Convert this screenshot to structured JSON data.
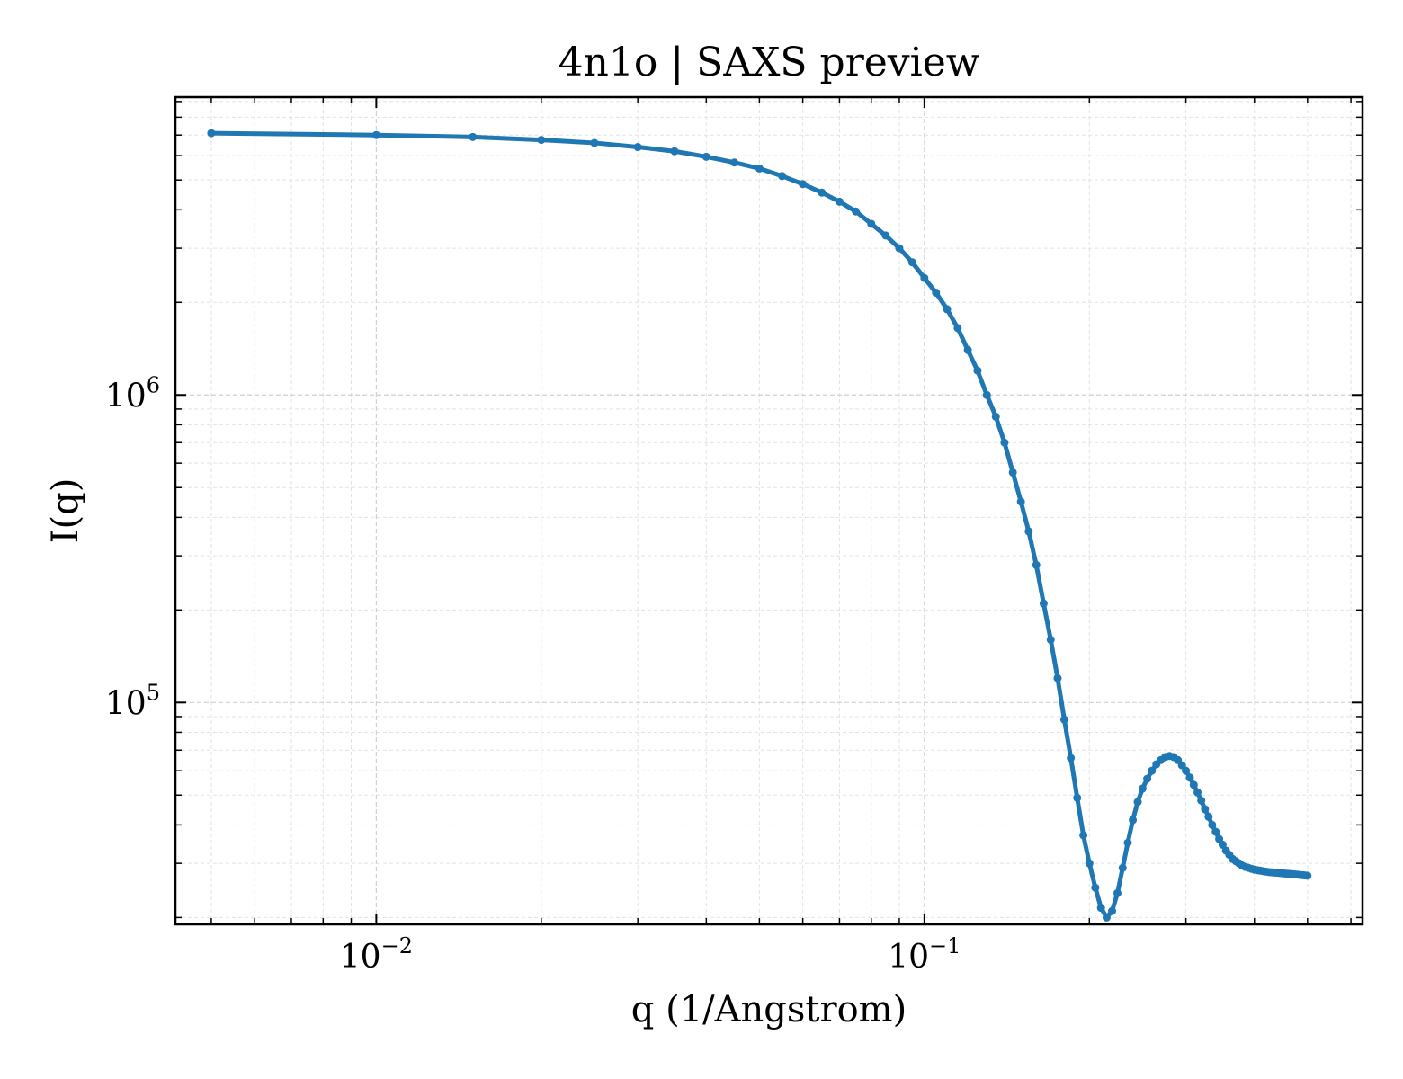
{
  "chart_data": {
    "type": "line",
    "title": "4n1o | SAXS preview",
    "xlabel": "q (1/Angstrom)",
    "ylabel": "I(q)",
    "xscale": "log",
    "yscale": "log",
    "xlim": [
      0.0043,
      0.63
    ],
    "ylim": [
      19000,
      9300000
    ],
    "x_ticks": [
      {
        "value": 0.01,
        "base": "10",
        "exp": "−2"
      },
      {
        "value": 0.1,
        "base": "10",
        "exp": "−1"
      }
    ],
    "y_ticks": [
      {
        "value": 100000,
        "base": "10",
        "exp": "5"
      },
      {
        "value": 1000000,
        "base": "10",
        "exp": "6"
      }
    ],
    "grid": true,
    "line_color": "#1f77b4",
    "series": [
      {
        "x": [
          0.005,
          0.01,
          0.015,
          0.02,
          0.025,
          0.03,
          0.035,
          0.04,
          0.045,
          0.05,
          0.055,
          0.06,
          0.065,
          0.07,
          0.075,
          0.08,
          0.085,
          0.09,
          0.095,
          0.1,
          0.105,
          0.11,
          0.115,
          0.12,
          0.125,
          0.13,
          0.135,
          0.14,
          0.145,
          0.15,
          0.155,
          0.16,
          0.165,
          0.17,
          0.175,
          0.18,
          0.185,
          0.19,
          0.195,
          0.2,
          0.205,
          0.21,
          0.215,
          0.22,
          0.225,
          0.23,
          0.235,
          0.24,
          0.245,
          0.25,
          0.255,
          0.26,
          0.265,
          0.27,
          0.275,
          0.28,
          0.285,
          0.29,
          0.295,
          0.3,
          0.305,
          0.31,
          0.315,
          0.32,
          0.325,
          0.33,
          0.335,
          0.34,
          0.345,
          0.35,
          0.355,
          0.36,
          0.365,
          0.37,
          0.375,
          0.38,
          0.385,
          0.39,
          0.395,
          0.4,
          0.405,
          0.41,
          0.415,
          0.42,
          0.425,
          0.43,
          0.435,
          0.44,
          0.445,
          0.45,
          0.455,
          0.46,
          0.465,
          0.47,
          0.475,
          0.48,
          0.485,
          0.49,
          0.495,
          0.5
        ],
        "y": [
          7100000,
          7000000,
          6900000,
          6750000,
          6600000,
          6400000,
          6200000,
          5950000,
          5700000,
          5450000,
          5150000,
          4850000,
          4550000,
          4250000,
          3950000,
          3600000,
          3300000,
          3000000,
          2700000,
          2400000,
          2150000,
          1900000,
          1650000,
          1400000,
          1200000,
          1000000,
          850000,
          700000,
          560000,
          450000,
          360000,
          280000,
          210000,
          160000,
          120000,
          88000,
          66000,
          49000,
          37000,
          30000,
          25000,
          21500,
          20000,
          21000,
          24000,
          29000,
          35000,
          41500,
          47500,
          52500,
          56500,
          60000,
          63000,
          65000,
          66500,
          67000,
          66500,
          65000,
          62500,
          60000,
          57000,
          54000,
          51000,
          48000,
          45000,
          42500,
          40000,
          38000,
          36000,
          34500,
          33000,
          32000,
          31000,
          30500,
          30000,
          29500,
          29200,
          29000,
          28800,
          28600,
          28500,
          28400,
          28300,
          28200,
          28100,
          28050,
          28000,
          27950,
          27900,
          27850,
          27800,
          27750,
          27700,
          27650,
          27600,
          27550,
          27500,
          27450,
          27400,
          27350
        ]
      }
    ]
  }
}
